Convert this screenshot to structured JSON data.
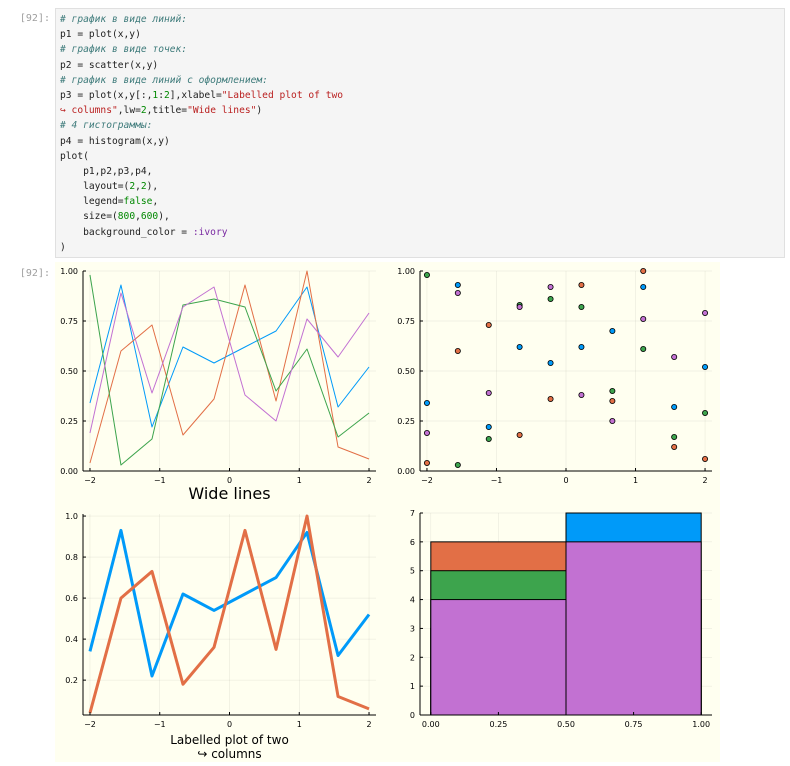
{
  "cells": [
    {
      "input_prompt": "[92]:",
      "output_prompt": "[92]:",
      "code_lines": [
        [
          {
            "t": "# график в виде линий:",
            "c": "cm"
          }
        ],
        [
          {
            "t": "p1 = plot(x,y)",
            "c": ""
          }
        ],
        [
          {
            "t": "# график в виде точек:",
            "c": "cm"
          }
        ],
        [
          {
            "t": "p2 = scatter(x,y)",
            "c": ""
          }
        ],
        [
          {
            "t": "# график в виде линий с оформлением:",
            "c": "cm"
          }
        ],
        [
          {
            "t": "p3 = plot(x,y[:,",
            "c": ""
          },
          {
            "t": "1",
            "c": "nu"
          },
          {
            "t": ":",
            "c": ""
          },
          {
            "t": "2",
            "c": "nu"
          },
          {
            "t": "],xlabel=",
            "c": ""
          },
          {
            "t": "\"Labelled plot of two",
            "c": "st"
          }
        ],
        [
          {
            "t": "↪ columns\"",
            "c": "st"
          },
          {
            "t": ",lw=",
            "c": ""
          },
          {
            "t": "2",
            "c": "nu"
          },
          {
            "t": ",title=",
            "c": ""
          },
          {
            "t": "\"Wide lines\"",
            "c": "st"
          },
          {
            "t": ")",
            "c": ""
          }
        ],
        [
          {
            "t": "# 4 гистограммы:",
            "c": "cm"
          }
        ],
        [
          {
            "t": "p4 = histogram(x,y)",
            "c": ""
          }
        ],
        [
          {
            "t": "plot(",
            "c": ""
          }
        ],
        [
          {
            "t": "    p1,p2,p3,p4,",
            "c": ""
          }
        ],
        [
          {
            "t": "    layout=(",
            "c": ""
          },
          {
            "t": "2",
            "c": "nu"
          },
          {
            "t": ",",
            "c": ""
          },
          {
            "t": "2",
            "c": "nu"
          },
          {
            "t": "),",
            "c": ""
          }
        ],
        [
          {
            "t": "    legend=",
            "c": ""
          },
          {
            "t": "false",
            "c": "nu"
          },
          {
            "t": ",",
            "c": ""
          }
        ],
        [
          {
            "t": "    size=(",
            "c": ""
          },
          {
            "t": "800",
            "c": "nu"
          },
          {
            "t": ",",
            "c": ""
          },
          {
            "t": "600",
            "c": "nu"
          },
          {
            "t": "),",
            "c": ""
          }
        ],
        [
          {
            "t": "    background_color = ",
            "c": ""
          },
          {
            "t": ":ivory",
            "c": "sy"
          }
        ],
        [
          {
            "t": ")",
            "c": ""
          }
        ]
      ]
    }
  ],
  "colors": {
    "background": "#fffff0",
    "series": [
      "#009af9",
      "#e26f46",
      "#3da44d",
      "#c271d2"
    ],
    "code_bg": "#f5f5f5"
  },
  "chart_data": [
    {
      "type": "line",
      "title": "",
      "xlabel": "",
      "ylabel": "",
      "xlim": [
        -2.1,
        2.1
      ],
      "ylim": [
        0,
        1.0
      ],
      "x_ticks": [
        -2,
        -1,
        0,
        1,
        2
      ],
      "y_ticks": [
        0.0,
        0.25,
        0.5,
        0.75,
        1.0
      ],
      "x_tick_labels": [
        "−2",
        "−1",
        "0",
        "1",
        "2"
      ],
      "y_tick_labels": [
        "0.00",
        "0.25",
        "0.50",
        "0.75",
        "1.00"
      ],
      "grid": true,
      "line_width": 1,
      "x": [
        -2.0,
        -1.556,
        -1.111,
        -0.667,
        -0.222,
        0.222,
        0.667,
        1.111,
        1.556,
        2.0
      ],
      "series": [
        {
          "values": [
            0.34,
            0.93,
            0.22,
            0.62,
            0.54,
            0.62,
            0.7,
            0.92,
            0.32,
            0.52
          ]
        },
        {
          "values": [
            0.04,
            0.6,
            0.73,
            0.18,
            0.36,
            0.93,
            0.35,
            1.0,
            0.12,
            0.06
          ]
        },
        {
          "values": [
            0.98,
            0.03,
            0.16,
            0.83,
            0.86,
            0.82,
            0.4,
            0.61,
            0.17,
            0.29
          ]
        },
        {
          "values": [
            0.19,
            0.89,
            0.39,
            0.82,
            0.92,
            0.38,
            0.25,
            0.76,
            0.57,
            0.79
          ]
        }
      ]
    },
    {
      "type": "scatter",
      "title": "",
      "xlabel": "",
      "ylabel": "",
      "xlim": [
        -2.1,
        2.1
      ],
      "ylim": [
        0,
        1.0
      ],
      "x_ticks": [
        -2,
        -1,
        0,
        1,
        2
      ],
      "y_ticks": [
        0.0,
        0.25,
        0.5,
        0.75,
        1.0
      ],
      "x_tick_labels": [
        "−2",
        "−1",
        "0",
        "1",
        "2"
      ],
      "y_tick_labels": [
        "0.00",
        "0.25",
        "0.50",
        "0.75",
        "1.00"
      ],
      "grid": true,
      "x": [
        -2.0,
        -1.556,
        -1.111,
        -0.667,
        -0.222,
        0.222,
        0.667,
        1.111,
        1.556,
        2.0
      ],
      "series": [
        {
          "values": [
            0.34,
            0.93,
            0.22,
            0.62,
            0.54,
            0.62,
            0.7,
            0.92,
            0.32,
            0.52
          ]
        },
        {
          "values": [
            0.04,
            0.6,
            0.73,
            0.18,
            0.36,
            0.93,
            0.35,
            1.0,
            0.12,
            0.06
          ]
        },
        {
          "values": [
            0.98,
            0.03,
            0.16,
            0.83,
            0.86,
            0.82,
            0.4,
            0.61,
            0.17,
            0.29
          ]
        },
        {
          "values": [
            0.19,
            0.89,
            0.39,
            0.82,
            0.92,
            0.38,
            0.25,
            0.76,
            0.57,
            0.79
          ]
        }
      ]
    },
    {
      "type": "line",
      "title": "Wide lines",
      "xlabel": [
        "Labelled plot of two",
        "↪ columns"
      ],
      "ylabel": "",
      "xlim": [
        -2.1,
        2.1
      ],
      "ylim": [
        0.03,
        1.01
      ],
      "x_ticks": [
        -2,
        -1,
        0,
        1,
        2
      ],
      "y_ticks": [
        0.2,
        0.4,
        0.6,
        0.8,
        1.0
      ],
      "x_tick_labels": [
        "−2",
        "−1",
        "0",
        "1",
        "2"
      ],
      "y_tick_labels": [
        "0.2",
        "0.4",
        "0.6",
        "0.8",
        "1.0"
      ],
      "grid": true,
      "line_width": 2,
      "x": [
        -2.0,
        -1.556,
        -1.111,
        -0.667,
        -0.222,
        0.222,
        0.667,
        1.111,
        1.556,
        2.0
      ],
      "series": [
        {
          "values": [
            0.34,
            0.93,
            0.22,
            0.62,
            0.54,
            0.62,
            0.7,
            0.92,
            0.32,
            0.52
          ]
        },
        {
          "values": [
            0.04,
            0.6,
            0.73,
            0.18,
            0.36,
            0.93,
            0.35,
            1.0,
            0.12,
            0.06
          ]
        }
      ]
    },
    {
      "type": "bar",
      "title": "",
      "xlabel": "",
      "ylabel": "",
      "xlim": [
        -0.04,
        1.04
      ],
      "ylim": [
        0,
        7
      ],
      "x_ticks": [
        0.0,
        0.25,
        0.5,
        0.75,
        1.0
      ],
      "y_ticks": [
        0,
        1,
        2,
        3,
        4,
        5,
        6,
        7
      ],
      "x_tick_labels": [
        "0.00",
        "0.25",
        "0.50",
        "0.75",
        "1.00"
      ],
      "y_tick_labels": [
        "0",
        "1",
        "2",
        "3",
        "4",
        "5",
        "6",
        "7"
      ],
      "grid": true,
      "bins": [
        [
          0.0,
          0.5
        ],
        [
          0.5,
          1.0
        ]
      ],
      "series": [
        {
          "values": [
            3,
            7
          ]
        },
        {
          "values": [
            6,
            4
          ]
        },
        {
          "values": [
            5,
            5
          ]
        },
        {
          "values": [
            4,
            6
          ]
        }
      ]
    }
  ]
}
